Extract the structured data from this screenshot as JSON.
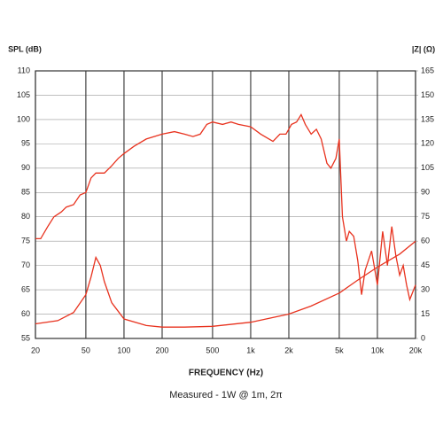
{
  "chart_data": {
    "type": "line",
    "ylabel": "SPL (dB)",
    "y2label": "|Z| (Ω)",
    "xlabel": "FREQUENCY (Hz)",
    "subtitle": "Measured - 1W @ 1m, 2π",
    "xscale": "log",
    "grid": true,
    "xlim": [
      20,
      20000
    ],
    "xticks": [
      20,
      50,
      100,
      200,
      500,
      {
        "value": 1000,
        "label": "1k"
      },
      {
        "value": 2000,
        "label": "2k"
      },
      {
        "value": 5000,
        "label": "5k"
      },
      {
        "value": 10000,
        "label": "10k"
      },
      {
        "value": 20000,
        "label": "20k"
      }
    ],
    "ylim": [
      55,
      110
    ],
    "yticks": [
      55,
      60,
      65,
      70,
      75,
      80,
      85,
      90,
      95,
      100,
      105,
      110
    ],
    "y2lim": [
      0,
      165
    ],
    "y2ticks": [
      0,
      15,
      30,
      45,
      60,
      75,
      90,
      105,
      120,
      135,
      150,
      165
    ],
    "series": [
      {
        "name": "SPL",
        "color": "#e8321e",
        "x": [
          20,
          22,
          25,
          28,
          32,
          35,
          40,
          45,
          50,
          55,
          60,
          70,
          80,
          90,
          100,
          120,
          150,
          200,
          250,
          300,
          350,
          400,
          450,
          500,
          600,
          700,
          800,
          1000,
          1200,
          1500,
          1700,
          1900,
          2100,
          2300,
          2500,
          2700,
          3000,
          3300,
          3600,
          4000,
          4300,
          4700,
          5000,
          5300,
          5700,
          6000,
          6500,
          7000,
          7500,
          8000,
          9000,
          10000,
          11000,
          12000,
          13000,
          14000,
          15000,
          16000,
          17000,
          18000,
          20000
        ],
        "values": [
          75.5,
          75.5,
          78,
          80,
          81,
          82,
          82.5,
          84.5,
          85,
          88,
          89,
          89,
          90.5,
          92,
          93,
          94.5,
          96,
          97,
          97.5,
          97,
          96.5,
          97,
          99,
          99.5,
          99,
          99.5,
          99,
          98.5,
          97,
          95.5,
          97,
          97,
          99,
          99.5,
          101,
          99,
          97,
          98,
          96,
          91,
          90,
          92,
          96,
          80,
          75,
          77,
          76,
          71,
          64,
          69,
          73,
          66,
          77,
          70,
          78,
          72,
          68,
          70,
          66,
          63,
          66
        ]
      },
      {
        "name": "Impedance",
        "color": "#e8321e",
        "axis": "y2",
        "x": [
          20,
          30,
          40,
          50,
          55,
          60,
          65,
          70,
          80,
          100,
          150,
          200,
          300,
          500,
          1000,
          2000,
          3000,
          5000,
          7000,
          10000,
          15000,
          20000
        ],
        "values": [
          9,
          11,
          16,
          27,
          38,
          50,
          45,
          35,
          22,
          12,
          8,
          7,
          7,
          7.5,
          10,
          15,
          20,
          28,
          36,
          44,
          52,
          60
        ]
      }
    ]
  }
}
